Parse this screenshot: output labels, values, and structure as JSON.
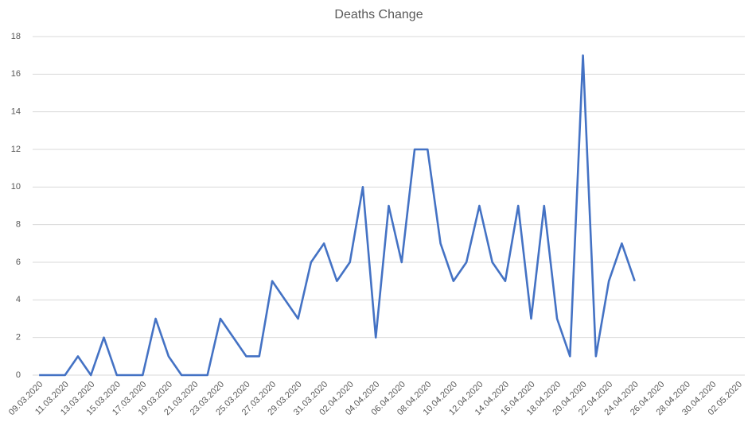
{
  "chart_data": {
    "type": "line",
    "title": "Deaths Change",
    "categories": [
      "09.03.2020",
      null,
      "11.03.2020",
      null,
      "13.03.2020",
      null,
      "15.03.2020",
      null,
      "17.03.2020",
      null,
      "19.03.2020",
      null,
      "21.03.2020",
      null,
      "23.03.2020",
      null,
      "25.03.2020",
      null,
      "27.03.2020",
      null,
      "29.03.2020",
      null,
      "31.03.2020",
      null,
      "02.04.2020",
      null,
      "04.04.2020",
      null,
      "06.04.2020",
      null,
      "08.04.2020",
      null,
      "10.04.2020",
      null,
      "12.04.2020",
      null,
      "14.04.2020",
      null,
      "16.04.2020",
      null,
      "18.04.2020",
      null,
      "20.04.2020",
      null,
      "22.04.2020",
      null,
      "24.04.2020",
      null,
      "26.04.2020",
      null,
      "28.04.2020",
      null,
      "30.04.2020",
      null,
      "02.05.2020"
    ],
    "series": [
      {
        "name": "Deaths Change",
        "color": "#4472c4",
        "values": [
          0,
          0,
          0,
          1,
          0,
          2,
          0,
          0,
          0,
          3,
          1,
          0,
          0,
          0,
          3,
          2,
          1,
          1,
          5,
          4,
          3,
          6,
          7,
          5,
          6,
          10,
          2,
          9,
          6,
          12,
          12,
          7,
          5,
          6,
          9,
          6,
          5,
          9,
          3,
          9,
          3,
          1,
          17,
          1,
          5,
          7,
          5,
          null,
          null,
          null,
          null,
          null,
          null,
          null,
          null
        ]
      }
    ],
    "ylim": [
      0,
      18
    ],
    "yticks": [
      0,
      2,
      4,
      6,
      8,
      10,
      12,
      14,
      16,
      18
    ],
    "grid": true
  }
}
